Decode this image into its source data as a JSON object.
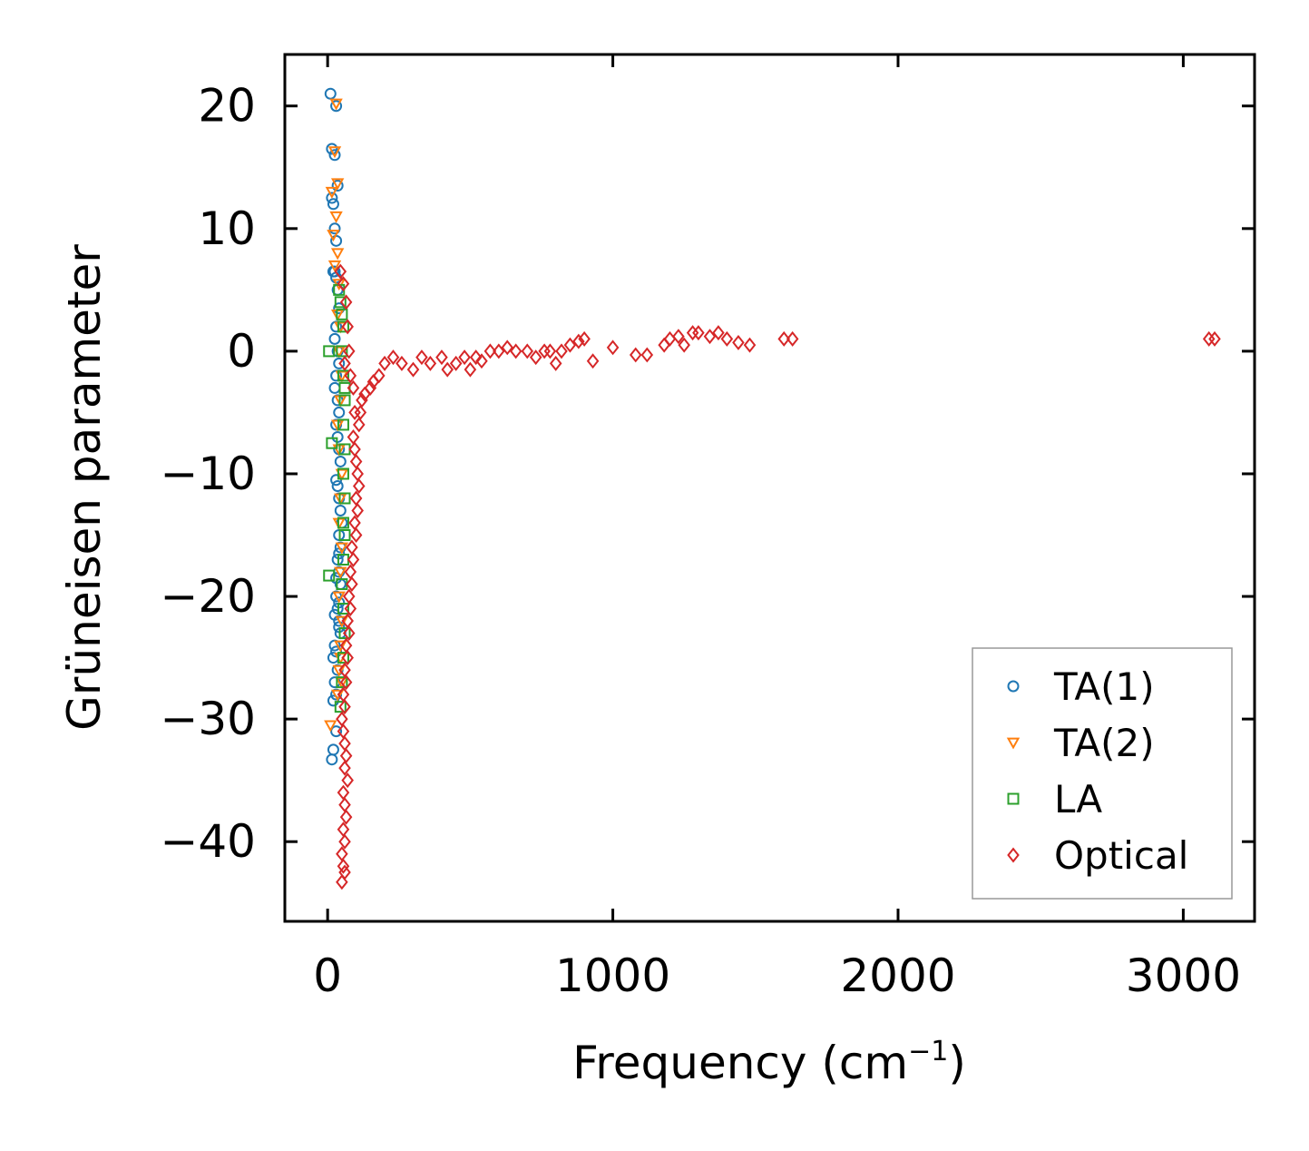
{
  "chart_data": {
    "type": "scatter",
    "xlabel": "Frequency (cm",
    "xlabel_superscript": "−1",
    "xlabel_suffix": ")",
    "ylabel": "Grüneisen parameter",
    "xlim": [
      -150,
      3250
    ],
    "ylim": [
      -46.5,
      24.2
    ],
    "xticks": [
      0,
      1000,
      2000,
      3000
    ],
    "xtick_labels": [
      "0",
      "1000",
      "2000",
      "3000"
    ],
    "yticks": [
      20,
      10,
      0,
      -10,
      -20,
      -30,
      -40
    ],
    "ytick_labels": [
      "20",
      "10",
      "0",
      "−10",
      "−20",
      "−30",
      "−40"
    ],
    "grid": false,
    "legend_position": "bottom-right",
    "series": [
      {
        "name": "TA(1)",
        "color": "#1f77b4",
        "marker": "circle",
        "points": [
          [
            10,
            21
          ],
          [
            30,
            20
          ],
          [
            15,
            16.5
          ],
          [
            25,
            16
          ],
          [
            35,
            13.5
          ],
          [
            15,
            12.5
          ],
          [
            20,
            12
          ],
          [
            25,
            10
          ],
          [
            30,
            9
          ],
          [
            20,
            6.5
          ],
          [
            25,
            6.5
          ],
          [
            30,
            6
          ],
          [
            35,
            5
          ],
          [
            40,
            3.5
          ],
          [
            30,
            2
          ],
          [
            25,
            1
          ],
          [
            35,
            0
          ],
          [
            40,
            -1
          ],
          [
            30,
            -2
          ],
          [
            25,
            -3
          ],
          [
            35,
            -4
          ],
          [
            40,
            -5
          ],
          [
            30,
            -6
          ],
          [
            35,
            -7
          ],
          [
            40,
            -8
          ],
          [
            45,
            -9
          ],
          [
            30,
            -10.5
          ],
          [
            35,
            -11
          ],
          [
            40,
            -12
          ],
          [
            45,
            -13
          ],
          [
            50,
            -14
          ],
          [
            40,
            -15
          ],
          [
            45,
            -16
          ],
          [
            35,
            -17
          ],
          [
            40,
            -18
          ],
          [
            45,
            -19
          ],
          [
            30,
            -20
          ],
          [
            35,
            -21
          ],
          [
            40,
            -22
          ],
          [
            45,
            -23
          ],
          [
            25,
            -24
          ],
          [
            30,
            -24.5
          ],
          [
            20,
            -25
          ],
          [
            35,
            -26
          ],
          [
            25,
            -27
          ],
          [
            30,
            -28
          ],
          [
            20,
            -28.5
          ],
          [
            30,
            -31
          ],
          [
            20,
            -32.5
          ],
          [
            15,
            -33.3
          ],
          [
            40,
            -20.5
          ],
          [
            40,
            -16.5
          ],
          [
            40,
            -22.5
          ],
          [
            30,
            -18.5
          ],
          [
            25,
            -21.5
          ]
        ]
      },
      {
        "name": "TA(2)",
        "color": "#ff7f0e",
        "marker": "triangle-down",
        "points": [
          [
            30,
            20.2
          ],
          [
            25,
            16.3
          ],
          [
            35,
            13.7
          ],
          [
            15,
            13
          ],
          [
            30,
            11
          ],
          [
            20,
            9.5
          ],
          [
            35,
            8
          ],
          [
            25,
            7
          ],
          [
            40,
            5.5
          ],
          [
            35,
            3
          ],
          [
            45,
            2
          ],
          [
            40,
            0
          ],
          [
            50,
            -2
          ],
          [
            45,
            -4
          ],
          [
            35,
            -6
          ],
          [
            40,
            -8
          ],
          [
            50,
            -10
          ],
          [
            45,
            -12
          ],
          [
            40,
            -14
          ],
          [
            50,
            -16
          ],
          [
            45,
            -18
          ],
          [
            40,
            -20
          ],
          [
            50,
            -22
          ],
          [
            45,
            -24
          ],
          [
            40,
            -26
          ],
          [
            10,
            -30.5
          ],
          [
            35,
            -28
          ],
          [
            50,
            -27
          ],
          [
            45,
            -25
          ]
        ]
      },
      {
        "name": "LA",
        "color": "#2ca02c",
        "marker": "square",
        "points": [
          [
            5,
            0
          ],
          [
            40,
            5
          ],
          [
            45,
            4
          ],
          [
            50,
            3
          ],
          [
            55,
            2
          ],
          [
            50,
            0
          ],
          [
            55,
            -2
          ],
          [
            60,
            -4
          ],
          [
            55,
            -6
          ],
          [
            15,
            -7.5
          ],
          [
            60,
            -8
          ],
          [
            55,
            -10
          ],
          [
            60,
            -12
          ],
          [
            55,
            -14
          ],
          [
            60,
            -15
          ],
          [
            5,
            -18.3
          ],
          [
            50,
            -19
          ],
          [
            55,
            -21
          ],
          [
            60,
            -23
          ],
          [
            55,
            -25
          ],
          [
            50,
            -27
          ],
          [
            45,
            -29
          ],
          [
            60,
            -3
          ],
          [
            55,
            -17
          ]
        ]
      },
      {
        "name": "Optical",
        "color": "#d62728",
        "marker": "diamond",
        "points": [
          [
            45,
            6.5
          ],
          [
            55,
            5.5
          ],
          [
            65,
            4
          ],
          [
            70,
            2
          ],
          [
            75,
            0
          ],
          [
            60,
            -1
          ],
          [
            80,
            -2
          ],
          [
            90,
            -3
          ],
          [
            120,
            -4
          ],
          [
            150,
            -3
          ],
          [
            180,
            -2
          ],
          [
            200,
            -1
          ],
          [
            230,
            -0.5
          ],
          [
            260,
            -1
          ],
          [
            300,
            -1.5
          ],
          [
            330,
            -0.5
          ],
          [
            360,
            -1
          ],
          [
            400,
            -0.5
          ],
          [
            420,
            -1.5
          ],
          [
            450,
            -1
          ],
          [
            480,
            -0.5
          ],
          [
            500,
            -1.5
          ],
          [
            520,
            -0.5
          ],
          [
            540,
            -0.8
          ],
          [
            570,
            0
          ],
          [
            600,
            0
          ],
          [
            630,
            0.3
          ],
          [
            660,
            0
          ],
          [
            700,
            0
          ],
          [
            730,
            -0.5
          ],
          [
            760,
            0
          ],
          [
            780,
            0
          ],
          [
            800,
            -1
          ],
          [
            820,
            0
          ],
          [
            850,
            0.5
          ],
          [
            880,
            0.8
          ],
          [
            900,
            1
          ],
          [
            930,
            -0.8
          ],
          [
            1000,
            0.3
          ],
          [
            1080,
            -0.3
          ],
          [
            1120,
            -0.3
          ],
          [
            1180,
            0.5
          ],
          [
            1200,
            1
          ],
          [
            1230,
            1.2
          ],
          [
            1250,
            0.5
          ],
          [
            1280,
            1.5
          ],
          [
            1300,
            1.5
          ],
          [
            1340,
            1.2
          ],
          [
            1370,
            1.5
          ],
          [
            1400,
            1
          ],
          [
            1440,
            0.7
          ],
          [
            1480,
            0.5
          ],
          [
            1600,
            1
          ],
          [
            1630,
            1
          ],
          [
            3090,
            1
          ],
          [
            3110,
            1
          ],
          [
            90,
            -7
          ],
          [
            95,
            -8
          ],
          [
            100,
            -9
          ],
          [
            105,
            -10
          ],
          [
            110,
            -11
          ],
          [
            100,
            -12
          ],
          [
            105,
            -13
          ],
          [
            95,
            -14
          ],
          [
            100,
            -15
          ],
          [
            85,
            -16
          ],
          [
            90,
            -17
          ],
          [
            80,
            -18
          ],
          [
            85,
            -19
          ],
          [
            75,
            -20
          ],
          [
            80,
            -21
          ],
          [
            70,
            -22
          ],
          [
            75,
            -23
          ],
          [
            65,
            -24
          ],
          [
            70,
            -25
          ],
          [
            60,
            -26
          ],
          [
            65,
            -27
          ],
          [
            55,
            -28
          ],
          [
            60,
            -29
          ],
          [
            50,
            -30
          ],
          [
            55,
            -31
          ],
          [
            60,
            -32
          ],
          [
            65,
            -33
          ],
          [
            60,
            -34
          ],
          [
            70,
            -35
          ],
          [
            55,
            -36
          ],
          [
            60,
            -37
          ],
          [
            65,
            -38
          ],
          [
            55,
            -39
          ],
          [
            60,
            -40
          ],
          [
            50,
            -41
          ],
          [
            55,
            -42
          ],
          [
            60,
            -42.5
          ],
          [
            50,
            -43.3
          ],
          [
            115,
            -5
          ],
          [
            130,
            -3.5
          ],
          [
            160,
            -2.5
          ],
          [
            110,
            -6
          ],
          [
            95,
            -5
          ]
        ]
      }
    ],
    "legend": {
      "entries": [
        "TA(1)",
        "TA(2)",
        "LA",
        "Optical"
      ]
    }
  }
}
